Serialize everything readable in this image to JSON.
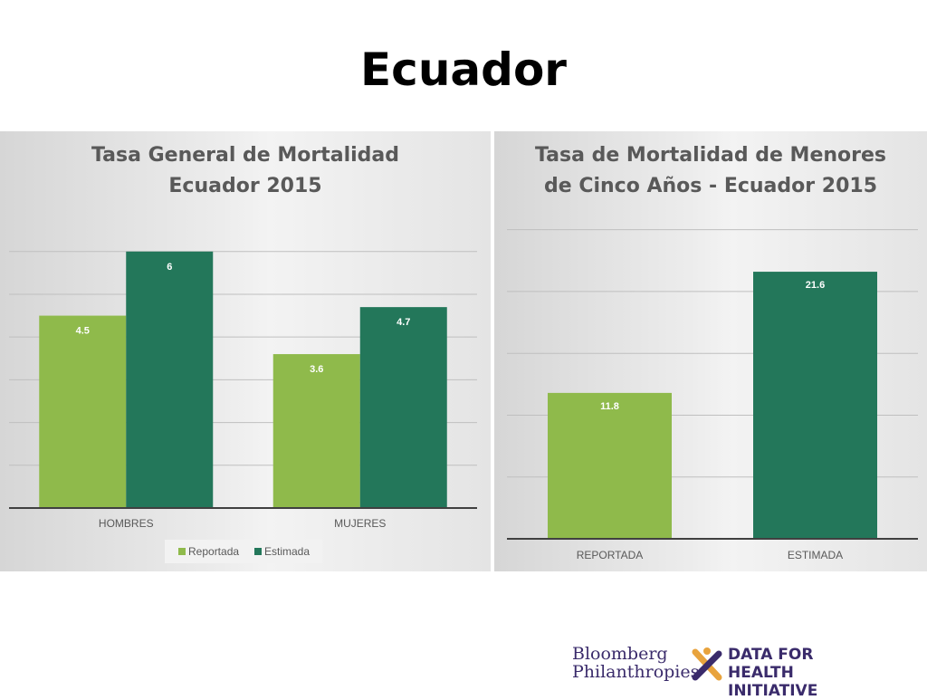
{
  "slide": {
    "title": "Ecuador"
  },
  "colors": {
    "reportada": "#8fba4b",
    "estimada": "#23775a",
    "axis": "#595959",
    "grid": "#bfbfbf"
  },
  "chart_data": [
    {
      "type": "bar",
      "title_lines": [
        "Tasa General de Mortalidad",
        "Ecuador 2015"
      ],
      "categories": [
        "HOMBRES",
        "MUJERES"
      ],
      "series": [
        {
          "name": "Reportada",
          "values": [
            4.5,
            3.6
          ],
          "labels": [
            "4.5",
            "3.6"
          ]
        },
        {
          "name": "Estimada",
          "values": [
            6,
            4.7
          ],
          "labels": [
            "6",
            "4.7"
          ]
        }
      ],
      "ylim": [
        0,
        6.8
      ],
      "gridlines": [
        1,
        2,
        3,
        4,
        5,
        6
      ],
      "legend": {
        "position": "bottom"
      }
    },
    {
      "type": "bar",
      "title_lines": [
        "Tasa de Mortalidad de Menores",
        "de Cinco Años - Ecuador 2015"
      ],
      "categories": [
        "REPORTADA",
        "ESTIMADA"
      ],
      "values": [
        11.8,
        21.6
      ],
      "labels": [
        "11.8",
        "21.6"
      ],
      "ylim": [
        0,
        26
      ],
      "gridlines": [
        5,
        10,
        15,
        20,
        25
      ],
      "legend": {
        "position": "none"
      }
    }
  ],
  "footer": {
    "bloomberg_line1": "Bloomberg",
    "bloomberg_line2": "Philanthropies",
    "d4h_line1": "DATA FOR",
    "d4h_line2": "HEALTH INITIATIVE"
  }
}
